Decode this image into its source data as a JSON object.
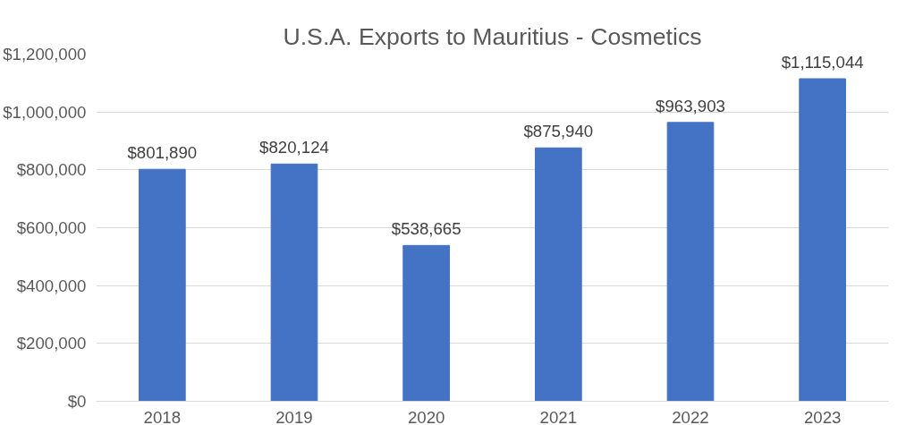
{
  "chart_data": {
    "type": "bar",
    "title": "U.S.A. Exports to Mauritius - Cosmetics",
    "categories": [
      "2018",
      "2019",
      "2020",
      "2021",
      "2022",
      "2023"
    ],
    "values": [
      801890,
      820124,
      538665,
      875940,
      963903,
      1115044
    ],
    "value_labels": [
      "$801,890",
      "$820,124",
      "$538,665",
      "$875,940",
      "$963,903",
      "$1,115,044"
    ],
    "color": "#4472c4",
    "ylim": [
      0,
      1200000
    ],
    "yticks": [
      {
        "value": 0,
        "label": "$0"
      },
      {
        "value": 200000,
        "label": "$200,000"
      },
      {
        "value": 400000,
        "label": "$400,000"
      },
      {
        "value": 600000,
        "label": "$600,000"
      },
      {
        "value": 800000,
        "label": "$800,000"
      },
      {
        "value": 1000000,
        "label": "$1,000,000"
      },
      {
        "value": 1200000,
        "label": "$1,200,000"
      }
    ],
    "grid": "y"
  }
}
